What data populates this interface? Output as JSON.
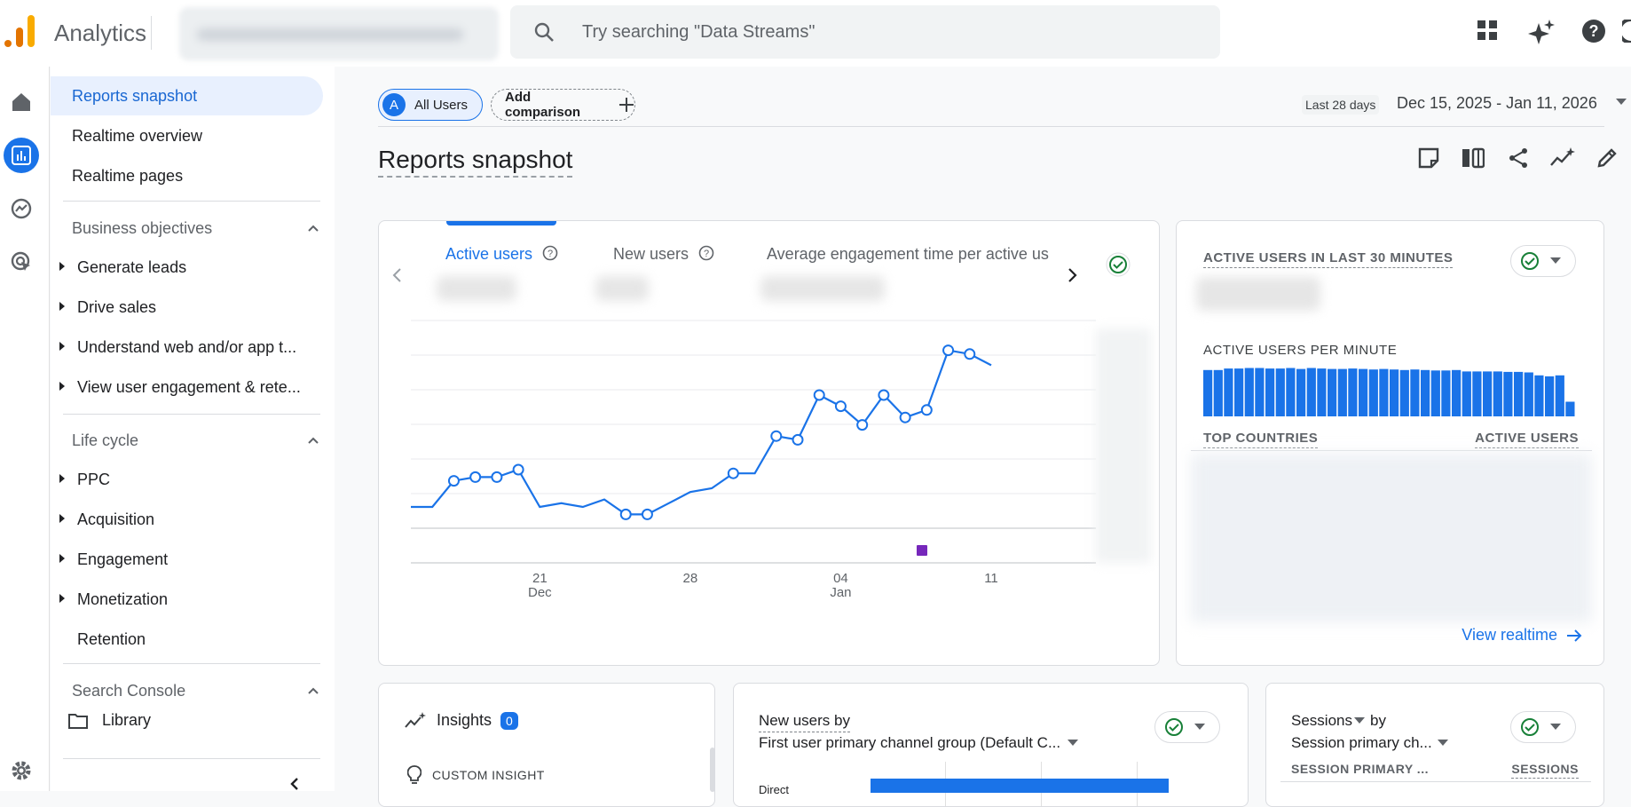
{
  "app": {
    "title": "Analytics"
  },
  "search": {
    "placeholder": "Try searching \"Data Streams\""
  },
  "nav": {
    "links": [
      "Reports snapshot",
      "Realtime overview",
      "Realtime pages"
    ],
    "business_objectives": {
      "label": "Business objectives",
      "items": [
        "Generate leads",
        "Drive sales",
        "Understand web and/or app t...",
        "View user engagement & rete..."
      ]
    },
    "life_cycle": {
      "label": "Life cycle",
      "items": [
        "PPC",
        "Acquisition",
        "Engagement",
        "Monetization",
        "Retention"
      ]
    },
    "search_console": {
      "label": "Search Console"
    },
    "library": "Library"
  },
  "header": {
    "segment_chip": {
      "avatar": "A",
      "label": "All Users"
    },
    "add_comparison": "Add comparison",
    "date_label": "Last 28 days",
    "date_range": "Dec 15, 2025 - Jan 11, 2026",
    "page_title": "Reports snapshot"
  },
  "main_card": {
    "tabs": [
      "Active users",
      "New users",
      "Average engagement time per active us"
    ]
  },
  "chart_data": {
    "type": "line",
    "series": [
      {
        "values": [
          15,
          15,
          22,
          23,
          23,
          25,
          15,
          16,
          15,
          17,
          13,
          13,
          16,
          19,
          20,
          24,
          24,
          34,
          33,
          45,
          42,
          37,
          45,
          39,
          41,
          57,
          56,
          53
        ]
      }
    ],
    "x_tick_labels": [
      {
        "day": "21",
        "month": "Dec"
      },
      {
        "day": "28",
        "month": ""
      },
      {
        "day": "04",
        "month": "Jan"
      },
      {
        "day": "11",
        "month": ""
      }
    ]
  },
  "realtime": {
    "title": "ACTIVE USERS IN LAST 30 MINUTES",
    "per_minute_label": "ACTIVE USERS PER MINUTE",
    "per_minute": [
      0.95,
      0.95,
      0.98,
      0.98,
      0.99,
      0.99,
      0.98,
      0.98,
      0.99,
      0.97,
      0.99,
      0.98,
      0.97,
      0.97,
      0.98,
      0.97,
      0.96,
      0.97,
      0.96,
      0.95,
      0.96,
      0.95,
      0.94,
      0.94,
      0.95,
      0.92,
      0.92,
      0.92,
      0.92,
      0.91,
      0.91,
      0.9,
      0.84,
      0.82,
      0.84,
      0.3
    ],
    "top_countries": "TOP COUNTRIES",
    "active_users_col": "ACTIVE USERS",
    "view_realtime": "View realtime"
  },
  "insights": {
    "label": "Insights",
    "count": "0",
    "custom": "CUSTOM INSIGHT"
  },
  "new_users_card": {
    "title": "New users by",
    "dimension": "First user primary channel group (Default C...",
    "first_row": "Direct"
  },
  "sessions_card": {
    "metric": "Sessions",
    "by": "by",
    "dimension": "Session primary ch...",
    "col1": "SESSION PRIMARY ...",
    "col2": "SESSIONS"
  },
  "colors": {
    "accent": "#1a73e8",
    "event_marker": "#7627bb",
    "success": "#188038"
  }
}
